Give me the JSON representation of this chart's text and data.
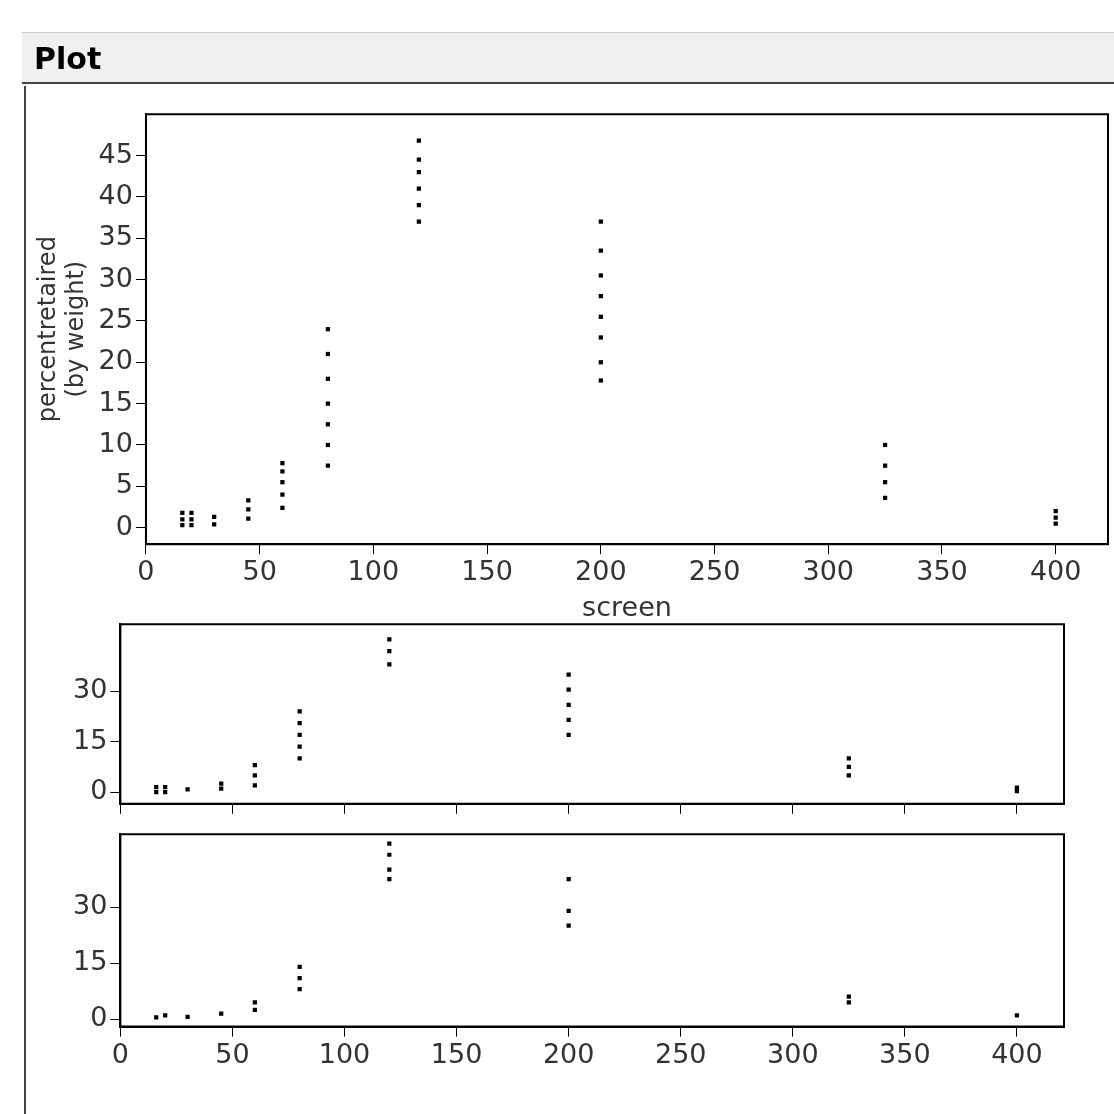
{
  "chart_data": [
    {
      "type": "scatter",
      "title": "Plot",
      "xlabel": "screen",
      "ylabel": "percentretaired (by weight)",
      "marker": "square",
      "grid": false,
      "series": [
        {
          "color": "#000000",
          "x": [
            16,
            16,
            16,
            20,
            20,
            20,
            30,
            30,
            45,
            45,
            45,
            60,
            60,
            60,
            60,
            60,
            80,
            80,
            80,
            80,
            80,
            80,
            80,
            120,
            120,
            120,
            120,
            120,
            120,
            200,
            200,
            200,
            200,
            200,
            200,
            200,
            200,
            325,
            325,
            325,
            325,
            400,
            400,
            400
          ],
          "values": [
            0.3,
            1,
            1.8,
            0.3,
            1,
            1.8,
            0.4,
            1.3,
            1.1,
            2.2,
            3.3,
            2.4,
            4,
            5.5,
            6.8,
            7.8,
            7.5,
            10,
            12.5,
            15,
            18,
            21,
            24,
            37,
            39,
            41,
            43,
            44.5,
            46.8,
            17.8,
            20,
            23,
            25.5,
            28,
            30.5,
            33.5,
            37,
            3.6,
            5.5,
            7.5,
            10,
            0.5,
            1.2,
            2
          ]
        }
      ],
      "xlim": [
        0,
        423
      ],
      "xticks": [
        0,
        50,
        100,
        150,
        200,
        250,
        300,
        350,
        400
      ],
      "ylim": [
        -2,
        50
      ],
      "yticks": [
        0,
        5,
        10,
        15,
        20,
        25,
        30,
        35,
        40,
        45
      ]
    },
    {
      "type": "scatter",
      "marker": "square",
      "grid": false,
      "tick_labels": "y",
      "series": [
        {
          "color": "#000000",
          "x": [
            16,
            16,
            20,
            20,
            30,
            45,
            45,
            60,
            60,
            60,
            80,
            80,
            80,
            80,
            80,
            120,
            120,
            120,
            200,
            200,
            200,
            200,
            200,
            325,
            325,
            325,
            400,
            400
          ],
          "values": [
            0,
            1.5,
            0,
            1.5,
            0.8,
            1,
            2.5,
            2,
            5,
            8,
            10,
            13.5,
            17,
            20.5,
            24,
            38,
            42,
            45.5,
            17,
            21.5,
            26,
            30.5,
            35,
            5,
            7.5,
            10,
            0.3,
            1.3
          ]
        }
      ],
      "xlim": [
        0,
        421
      ],
      "xticks": [
        0,
        50,
        100,
        150,
        200,
        250,
        300,
        350,
        400
      ],
      "ylim": [
        -3.5,
        50
      ],
      "yticks": [
        0,
        15,
        30
      ]
    },
    {
      "type": "scatter",
      "marker": "square",
      "grid": false,
      "series": [
        {
          "color": "#000000",
          "x": [
            16,
            20,
            30,
            45,
            60,
            60,
            80,
            80,
            80,
            120,
            120,
            120,
            120,
            200,
            200,
            200,
            325,
            325,
            400
          ],
          "values": [
            0.5,
            1,
            0.6,
            1.5,
            2.5,
            4.5,
            8,
            11,
            14,
            37.5,
            40,
            44,
            47,
            25,
            29,
            37.5,
            4.5,
            6,
            1
          ]
        }
      ],
      "xlim": [
        0,
        421
      ],
      "xticks": [
        0,
        50,
        100,
        150,
        200,
        250,
        300,
        350,
        400
      ],
      "ylim": [
        -2,
        49.5
      ],
      "yticks": [
        0,
        15,
        30
      ]
    }
  ]
}
